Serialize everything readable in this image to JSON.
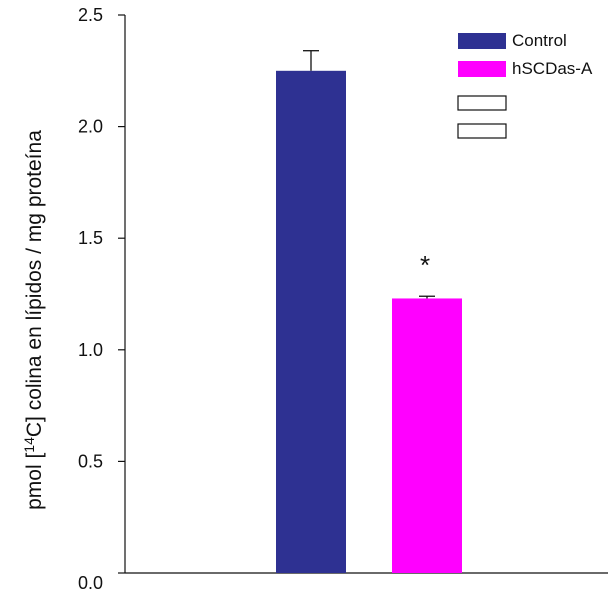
{
  "chart_data": {
    "type": "bar",
    "categories": [
      "Control",
      "hSCDas-A"
    ],
    "series": [
      {
        "name": "Control",
        "values": [
          2.25,
          null
        ],
        "errors": [
          0.09,
          null
        ],
        "color": "#2e3192"
      },
      {
        "name": "hSCDas-A",
        "values": [
          null,
          1.23
        ],
        "errors": [
          null,
          0.01
        ],
        "color": "#ff00ff"
      }
    ],
    "ylabel_parts": [
      "pmol [",
      "14",
      "C] colina en lípidos / mg proteína"
    ],
    "ylim": [
      0,
      2.5
    ],
    "yticks": [
      0.0,
      0.5,
      1.0,
      1.5,
      2.0,
      2.5
    ],
    "ytick_labels": [
      "0.0",
      "0.5",
      "1.0",
      "1.5",
      "2.0",
      "2.5"
    ],
    "annotations": [
      {
        "category": "hSCDas-A",
        "text": "*"
      }
    ],
    "legend": {
      "placement": "top-right",
      "entries": [
        {
          "label": "Control",
          "color": "#2e3192"
        },
        {
          "label": "hSCDas-A",
          "color": "#ff00ff"
        },
        {
          "label": "",
          "color": "#ffffff"
        },
        {
          "label": "",
          "color": "#ffffff"
        }
      ]
    },
    "grid": false
  }
}
